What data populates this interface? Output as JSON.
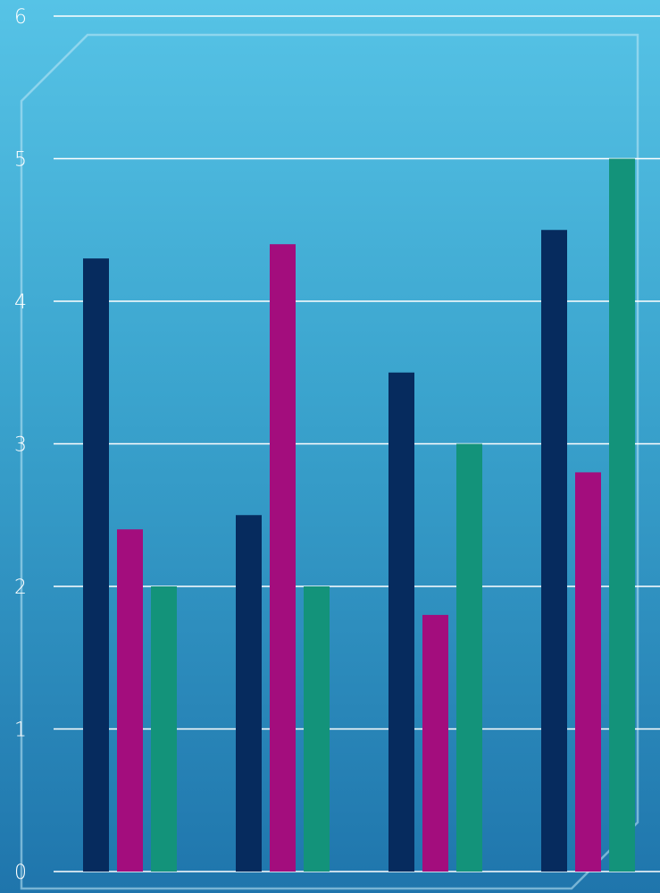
{
  "colors": {
    "grid": "#ffffff",
    "frame": "#bfe8f6",
    "series_colors": [
      "#062b5e",
      "#a30d7d",
      "#13937a"
    ]
  },
  "chart_data": {
    "type": "bar",
    "title": "",
    "xlabel": "",
    "ylabel": "",
    "ylim": [
      0,
      6
    ],
    "yticks": [
      "0",
      "1",
      "2",
      "3",
      "4",
      "5",
      "6"
    ],
    "grid": true,
    "legend": "none",
    "categories": [
      "",
      "",
      "",
      ""
    ],
    "series": [
      {
        "values": [
          4.3,
          2.5,
          3.5,
          4.5
        ]
      },
      {
        "values": [
          2.4,
          4.4,
          1.8,
          2.8
        ]
      },
      {
        "values": [
          2.0,
          2.0,
          3.0,
          5.0
        ]
      }
    ]
  }
}
